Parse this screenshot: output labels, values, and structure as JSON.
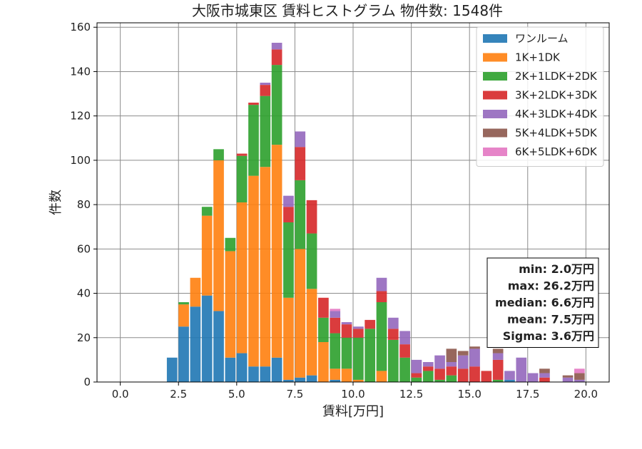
{
  "chart_data": {
    "type": "bar",
    "stacked": true,
    "title": "大阪市城東区 賃料ヒストグラム  物件数: 1548件",
    "xlabel": "賃料[万円]",
    "ylabel": "件数",
    "xlim": [
      -1.0,
      21.0
    ],
    "ylim": [
      0,
      162
    ],
    "xticks": [
      0.0,
      2.5,
      5.0,
      7.5,
      10.0,
      12.5,
      15.0,
      17.5,
      20.0
    ],
    "xtick_labels": [
      "0.0",
      "2.5",
      "5.0",
      "7.5",
      "10.0",
      "12.5",
      "15.0",
      "17.5",
      "20.0"
    ],
    "yticks": [
      0,
      20,
      40,
      60,
      80,
      100,
      120,
      140,
      160
    ],
    "ytick_labels": [
      "0",
      "20",
      "40",
      "60",
      "80",
      "100",
      "120",
      "140",
      "160"
    ],
    "grid": true,
    "legend_position": "top-right",
    "bin_width": 0.5,
    "x": [
      2.0,
      2.5,
      3.0,
      3.5,
      4.0,
      4.5,
      5.0,
      5.5,
      6.0,
      6.5,
      7.0,
      7.5,
      8.0,
      8.5,
      9.0,
      9.5,
      10.0,
      10.5,
      11.0,
      11.5,
      12.0,
      12.5,
      13.0,
      13.5,
      14.0,
      14.5,
      15.0,
      15.5,
      16.0,
      16.5,
      17.0,
      17.5,
      18.0,
      18.5,
      19.0,
      19.5
    ],
    "series": [
      {
        "name": "ワンルーム",
        "color": "#1f77b4",
        "values": [
          11,
          25,
          34,
          39,
          32,
          11,
          13,
          7,
          7,
          11,
          1,
          2,
          3,
          0,
          1,
          0,
          0,
          0,
          0,
          0,
          0,
          0,
          0,
          0,
          0,
          0,
          0,
          0,
          0,
          1,
          0,
          0,
          0,
          0,
          0,
          0
        ]
      },
      {
        "name": "1K+1DK",
        "color": "#ff7f0e",
        "values": [
          0,
          10,
          13,
          36,
          68,
          48,
          68,
          86,
          90,
          96,
          37,
          58,
          39,
          18,
          5,
          6,
          1,
          0,
          5,
          0,
          0,
          0,
          0,
          0,
          0,
          0,
          0,
          0,
          0,
          0,
          0,
          0,
          0,
          0,
          0,
          0
        ]
      },
      {
        "name": "2K+1LDK+2DK",
        "color": "#2ca02c",
        "values": [
          0,
          1,
          0,
          4,
          5,
          6,
          21,
          32,
          32,
          36,
          34,
          31,
          25,
          11,
          16,
          14,
          19,
          24,
          31,
          19,
          11,
          2,
          5,
          1,
          3,
          0,
          0,
          0,
          1,
          0,
          0,
          0,
          0,
          0,
          0,
          0
        ]
      },
      {
        "name": "3K+2LDK+3DK",
        "color": "#d62728",
        "values": [
          0,
          0,
          0,
          0,
          0,
          0,
          1,
          1,
          5,
          7,
          7,
          15,
          15,
          9,
          7,
          6,
          4,
          4,
          5,
          5,
          6,
          2,
          2,
          5,
          4,
          6,
          7,
          5,
          9,
          0,
          0,
          0,
          2,
          0,
          0,
          0
        ]
      },
      {
        "name": "4K+3LDK+4DK",
        "color": "#9467bd",
        "values": [
          0,
          0,
          0,
          0,
          0,
          0,
          0,
          0,
          1,
          3,
          5,
          7,
          0,
          0,
          3,
          1,
          1,
          0,
          6,
          5,
          6,
          6,
          2,
          6,
          2,
          6,
          8,
          0,
          3,
          4,
          11,
          4,
          2,
          0,
          2,
          1
        ]
      },
      {
        "name": "5K+4LDK+5DK",
        "color": "#8c564b",
        "values": [
          0,
          0,
          0,
          0,
          0,
          0,
          0,
          0,
          0,
          0,
          0,
          0,
          0,
          0,
          0,
          0,
          0,
          0,
          0,
          0,
          0,
          0,
          0,
          0,
          6,
          2,
          1,
          0,
          2,
          0,
          0,
          0,
          2,
          0,
          1,
          3
        ]
      },
      {
        "name": "6K+5LDK+6DK",
        "color": "#e377c2",
        "values": [
          0,
          0,
          0,
          0,
          0,
          0,
          0,
          0,
          0,
          0,
          0,
          0,
          0,
          0,
          1,
          0,
          0,
          0,
          0,
          0,
          0,
          0,
          0,
          0,
          0,
          0,
          0,
          0,
          0,
          0,
          0,
          0,
          0,
          0,
          0,
          2
        ]
      }
    ],
    "stats_box": {
      "lines": [
        "min: 2.0万円",
        "max: 26.2万円",
        "median: 6.6万円",
        "mean: 7.5万円",
        "Sigma: 3.6万円"
      ],
      "position": "right"
    }
  }
}
